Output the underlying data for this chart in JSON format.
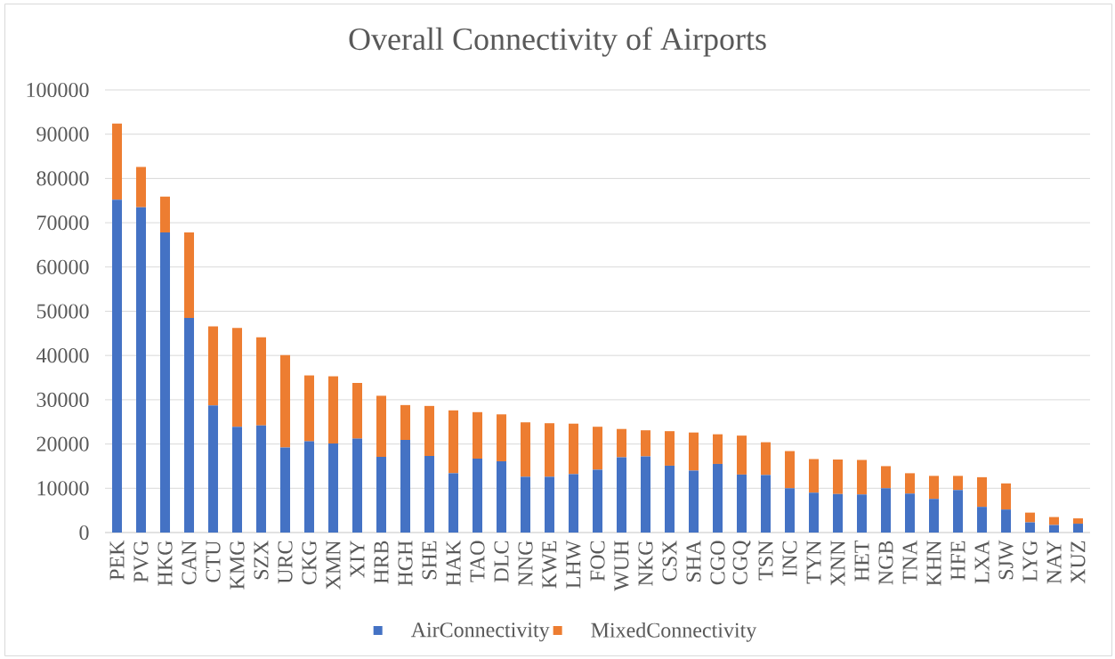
{
  "chart_data": {
    "type": "bar",
    "title": "Overall Connectivity of Airports",
    "categories": [
      "PEK",
      "PVG",
      "HKG",
      "CAN",
      "CTU",
      "KMG",
      "SZX",
      "URC",
      "CKG",
      "XMN",
      "XIY",
      "HRB",
      "HGH",
      "SHE",
      "HAK",
      "TAO",
      "DLC",
      "NNG",
      "KWE",
      "LHW",
      "FOC",
      "WUH",
      "NKG",
      "CSX",
      "SHA",
      "CGO",
      "CGQ",
      "TSN",
      "INC",
      "TYN",
      "XNN",
      "HET",
      "NGB",
      "TNA",
      "KHN",
      "HFE",
      "LXA",
      "SJW",
      "LYG",
      "NAY",
      "XUZ"
    ],
    "series": [
      {
        "name": "AirConnectivity",
        "color": "#4472c4",
        "values": [
          75200,
          73500,
          67800,
          48500,
          28700,
          23900,
          24200,
          19200,
          20600,
          20100,
          21200,
          17100,
          20900,
          17300,
          13400,
          16700,
          16100,
          12600,
          12600,
          13200,
          14200,
          17000,
          17200,
          15100,
          14000,
          15500,
          13100,
          13000,
          10000,
          9000,
          8700,
          8600,
          10000,
          8800,
          7600,
          9600,
          5800,
          5200,
          2300,
          1700,
          2000
        ]
      },
      {
        "name": "MixedConnectivity",
        "color": "#ed7d31",
        "values": [
          17200,
          9100,
          8100,
          19300,
          17900,
          22300,
          19900,
          20900,
          14900,
          15200,
          12600,
          13800,
          7900,
          11300,
          14200,
          10500,
          10600,
          12300,
          12100,
          11400,
          9700,
          6400,
          5900,
          7800,
          8600,
          6700,
          8800,
          7400,
          8400,
          7600,
          7800,
          7800,
          5000,
          4600,
          5200,
          3200,
          6700,
          5900,
          2200,
          1800,
          1200
        ]
      }
    ],
    "stacked": true,
    "ylim": [
      0,
      100000
    ],
    "yticks": [
      0,
      10000,
      20000,
      30000,
      40000,
      50000,
      60000,
      70000,
      80000,
      90000,
      100000
    ],
    "grid": "y",
    "legend": "bottom"
  }
}
